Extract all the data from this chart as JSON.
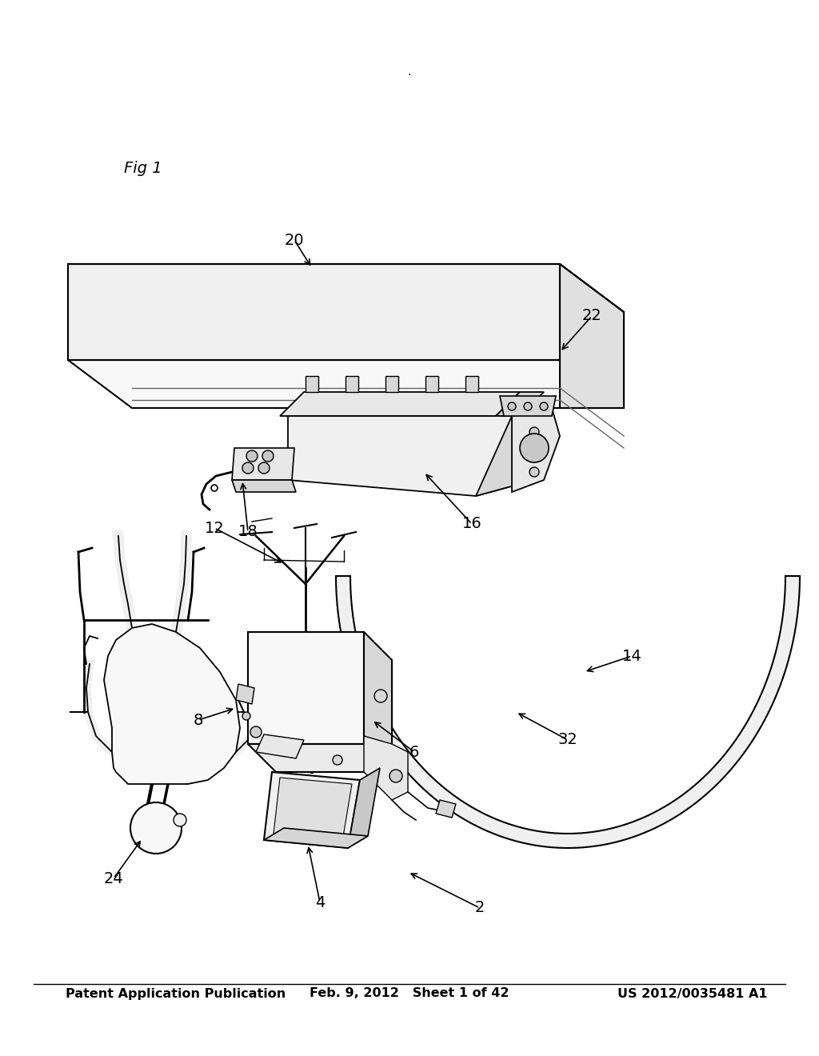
{
  "background_color": "#ffffff",
  "header_left": "Patent Application Publication",
  "header_center": "Feb. 9, 2012   Sheet 1 of 42",
  "header_right": "US 2012/0035481 A1",
  "fig_label": "Fig 1",
  "dot_label": ".",
  "header_fontsize": 11.5,
  "label_fontsize": 14,
  "figlabel_fontsize": 14,
  "page_width": 10.24,
  "page_height": 13.2
}
